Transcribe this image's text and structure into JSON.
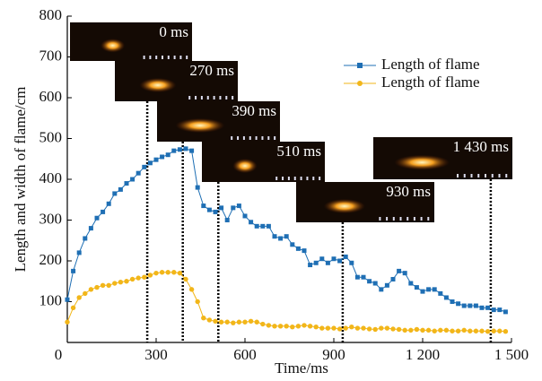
{
  "chart_data": {
    "type": "line",
    "xlabel": "Time/ms",
    "ylabel": "Length and width of flame/cm",
    "x": [
      0,
      20,
      40,
      60,
      80,
      100,
      120,
      140,
      160,
      180,
      200,
      220,
      240,
      260,
      280,
      300,
      320,
      340,
      360,
      380,
      400,
      420,
      440,
      460,
      480,
      500,
      520,
      540,
      560,
      580,
      600,
      620,
      640,
      660,
      680,
      700,
      720,
      740,
      760,
      780,
      800,
      820,
      840,
      860,
      880,
      900,
      920,
      940,
      960,
      980,
      1000,
      1020,
      1040,
      1060,
      1080,
      1100,
      1120,
      1140,
      1160,
      1180,
      1200,
      1220,
      1240,
      1260,
      1280,
      1300,
      1320,
      1340,
      1360,
      1380,
      1400,
      1420,
      1440,
      1460,
      1480
    ],
    "series": [
      {
        "name": "Length of flame",
        "color": "#1f6fb4",
        "marker": "square",
        "values": [
          105,
          175,
          220,
          255,
          280,
          305,
          320,
          340,
          365,
          375,
          390,
          400,
          415,
          430,
          440,
          448,
          455,
          460,
          470,
          473,
          475,
          470,
          380,
          335,
          325,
          320,
          330,
          300,
          330,
          335,
          310,
          295,
          285,
          285,
          285,
          260,
          255,
          260,
          240,
          230,
          225,
          190,
          195,
          205,
          195,
          205,
          200,
          210,
          195,
          160,
          160,
          150,
          145,
          130,
          140,
          155,
          175,
          170,
          145,
          135,
          125,
          130,
          130,
          120,
          110,
          100,
          95,
          90,
          90,
          90,
          85,
          85,
          80,
          80,
          75
        ]
      },
      {
        "name": "Length of flame",
        "color": "#f2b619",
        "marker": "circle",
        "values": [
          50,
          85,
          110,
          120,
          130,
          135,
          140,
          140,
          145,
          148,
          150,
          155,
          158,
          160,
          165,
          170,
          172,
          172,
          172,
          170,
          155,
          130,
          100,
          60,
          55,
          52,
          50,
          50,
          48,
          50,
          50,
          52,
          50,
          45,
          42,
          40,
          40,
          40,
          38,
          40,
          42,
          40,
          38,
          35,
          35,
          35,
          33,
          35,
          38,
          35,
          35,
          33,
          32,
          35,
          35,
          33,
          32,
          30,
          30,
          32,
          30,
          30,
          28,
          30,
          30,
          28,
          28,
          30,
          28,
          28,
          28,
          27,
          28,
          28,
          27
        ]
      }
    ],
    "xlim": [
      0,
      1500
    ],
    "xticks": [
      0,
      300,
      600,
      900,
      {
        "value": 1200,
        "label": "1 200"
      },
      {
        "value": 1500,
        "label": "1 500"
      }
    ],
    "ylim": [
      0,
      800
    ],
    "yticks": [
      100,
      200,
      300,
      400,
      500,
      600,
      700,
      800
    ],
    "vlines": [
      270,
      390,
      510,
      930,
      1430
    ],
    "annotations": [
      "0 ms",
      "270 ms",
      "390 ms",
      "510 ms",
      "930 ms",
      "1 430 ms"
    ],
    "legend": "upper right"
  }
}
